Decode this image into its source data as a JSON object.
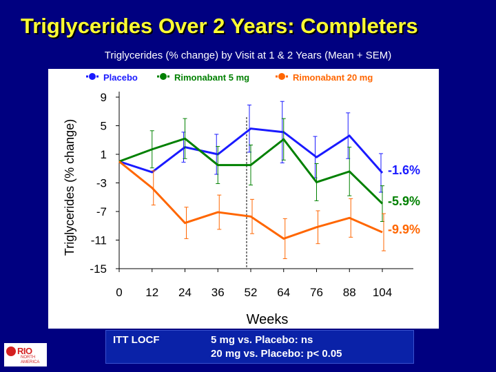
{
  "slide": {
    "title": "Triglycerides Over 2 Years: Completers",
    "subtitle": "Triglycerides (% change) by Visit at 1 & 2 Years (Mean + SEM)"
  },
  "footer": {
    "tag": "ITT LOCF",
    "line1": "5 mg vs. Placebo: ns",
    "line2": "20 mg vs. Placebo: p< 0.05"
  },
  "logo": {
    "word": "RIO",
    "sub1": "NORTH",
    "sub2": "AMERICA"
  },
  "chart_data": {
    "type": "line",
    "title": "",
    "xlabel": "Weeks",
    "ylabel": "Triglycerides (% change)",
    "categories": [
      "0",
      "12",
      "24",
      "36",
      "52",
      "64",
      "76",
      "88",
      "104"
    ],
    "ylim": [
      -15,
      10
    ],
    "yticks": [
      9,
      5,
      1,
      -3,
      -7,
      -11,
      -15
    ],
    "reference_line_at": "52",
    "legend_position": "top",
    "series": [
      {
        "name": "Placebo",
        "color": "#1a1aff",
        "values": [
          0,
          -1.5,
          2,
          1,
          4.6,
          4.1,
          0.6,
          3.6,
          -1.6
        ],
        "sem": [
          0,
          0,
          2.1,
          2.8,
          3.3,
          4.3,
          2.9,
          3.2,
          2.7
        ],
        "end_label": "-1.6%"
      },
      {
        "name": "Rimonabant 5 mg",
        "color": "#008000",
        "values": [
          0,
          1.7,
          3.2,
          -0.5,
          -0.5,
          3.1,
          -2.9,
          -1.4,
          -5.9
        ],
        "sem": [
          0,
          2.6,
          2.8,
          2.6,
          2.8,
          2.9,
          2.6,
          3.4,
          2.5
        ],
        "end_label": "-5.9%"
      },
      {
        "name": "Rimonabant 20 mg",
        "color": "#ff6600",
        "values": [
          0,
          -3.7,
          -8.6,
          -7.1,
          -7.7,
          -10.8,
          -9.2,
          -7.9,
          -9.9
        ],
        "sem": [
          0,
          2.4,
          2.2,
          2.4,
          2.4,
          2.8,
          2.3,
          2.7,
          2.6
        ],
        "end_label": "-9.9%"
      }
    ]
  }
}
